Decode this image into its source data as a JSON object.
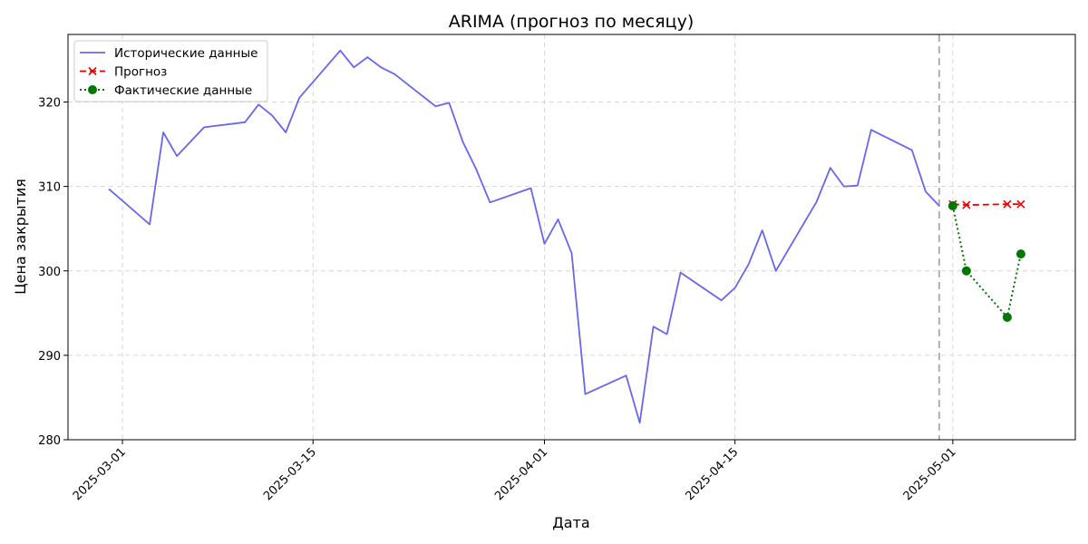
{
  "chart_data": {
    "type": "line",
    "title": "ARIMA (прогноз по месяцу)",
    "xlabel": "Дата",
    "ylabel": "Цена закрытия",
    "x_type": "date",
    "xlim": [
      "2025-02-25",
      "2025-05-10"
    ],
    "ylim": [
      280,
      328
    ],
    "x_ticks": [
      "2025-03-01",
      "2025-03-15",
      "2025-04-01",
      "2025-04-15",
      "2025-05-01"
    ],
    "y_ticks": [
      280,
      290,
      300,
      310,
      320
    ],
    "grid": true,
    "legend_position": "top-left",
    "split_date": "2025-04-30",
    "series": [
      {
        "name": "Исторические данные",
        "color": "#6666ee",
        "style": "solid",
        "marker": "none",
        "points": [
          [
            "2025-02-28",
            309.7
          ],
          [
            "2025-03-03",
            305.5
          ],
          [
            "2025-03-04",
            316.4
          ],
          [
            "2025-03-05",
            313.6
          ],
          [
            "2025-03-07",
            317.0
          ],
          [
            "2025-03-10",
            317.6
          ],
          [
            "2025-03-11",
            319.7
          ],
          [
            "2025-03-12",
            318.4
          ],
          [
            "2025-03-13",
            316.4
          ],
          [
            "2025-03-14",
            320.5
          ],
          [
            "2025-03-17",
            326.1
          ],
          [
            "2025-03-18",
            324.1
          ],
          [
            "2025-03-19",
            325.3
          ],
          [
            "2025-03-20",
            324.1
          ],
          [
            "2025-03-21",
            323.3
          ],
          [
            "2025-03-24",
            319.5
          ],
          [
            "2025-03-25",
            319.9
          ],
          [
            "2025-03-26",
            315.3
          ],
          [
            "2025-03-27",
            312.0
          ],
          [
            "2025-03-28",
            308.1
          ],
          [
            "2025-03-31",
            309.8
          ],
          [
            "2025-04-01",
            303.2
          ],
          [
            "2025-04-02",
            306.1
          ],
          [
            "2025-04-03",
            302.1
          ],
          [
            "2025-04-04",
            285.4
          ],
          [
            "2025-04-07",
            287.6
          ],
          [
            "2025-04-08",
            282.0
          ],
          [
            "2025-04-09",
            293.4
          ],
          [
            "2025-04-10",
            292.5
          ],
          [
            "2025-04-11",
            299.8
          ],
          [
            "2025-04-14",
            296.5
          ],
          [
            "2025-04-15",
            298.0
          ],
          [
            "2025-04-16",
            300.8
          ],
          [
            "2025-04-17",
            304.8
          ],
          [
            "2025-04-18",
            300.0
          ],
          [
            "2025-04-21",
            308.2
          ],
          [
            "2025-04-22",
            312.2
          ],
          [
            "2025-04-23",
            310.0
          ],
          [
            "2025-04-24",
            310.1
          ],
          [
            "2025-04-25",
            316.7
          ],
          [
            "2025-04-28",
            314.3
          ],
          [
            "2025-04-29",
            309.4
          ],
          [
            "2025-04-30",
            307.7
          ]
        ]
      },
      {
        "name": "Прогноз",
        "color": "#ee0000",
        "style": "dashed",
        "marker": "x",
        "points": [
          [
            "2025-05-01",
            307.9
          ],
          [
            "2025-05-02",
            307.8
          ],
          [
            "2025-05-05",
            307.9
          ],
          [
            "2025-05-06",
            307.9
          ]
        ]
      },
      {
        "name": "Фактические данные",
        "color": "#007700",
        "style": "dotted",
        "marker": "circle",
        "points": [
          [
            "2025-05-01",
            307.7
          ],
          [
            "2025-05-02",
            300.0
          ],
          [
            "2025-05-05",
            294.5
          ],
          [
            "2025-05-06",
            302.0
          ]
        ]
      }
    ]
  }
}
